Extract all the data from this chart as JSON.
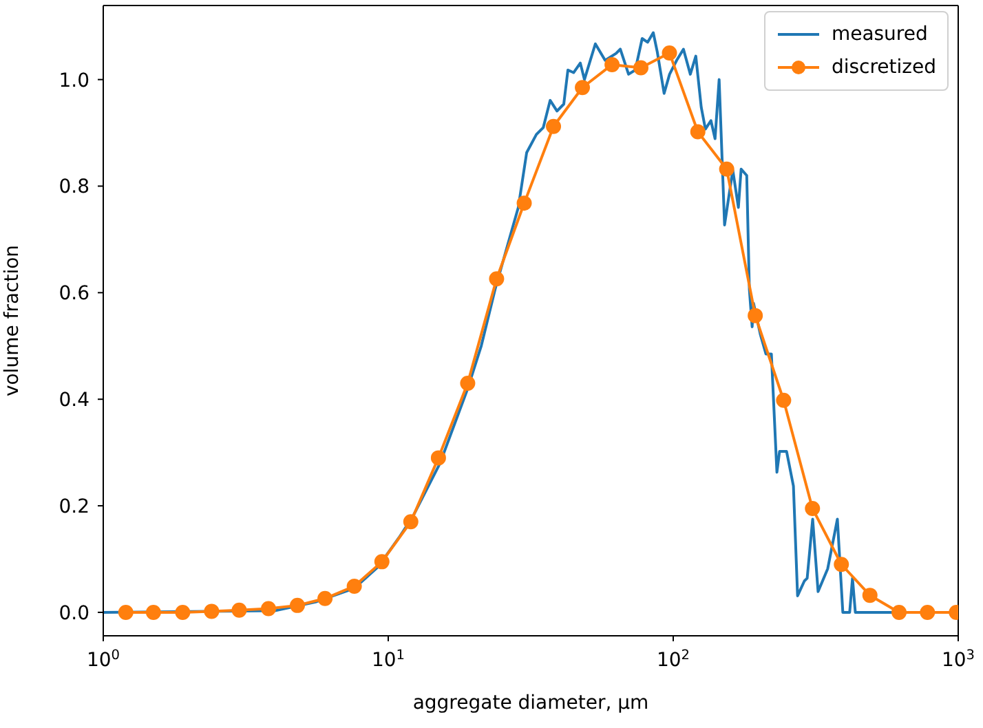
{
  "chart_data": {
    "type": "line",
    "xlabel": "aggregate diameter, µm",
    "ylabel": "volume fraction",
    "log": "x",
    "xlim": [
      1,
      1000
    ],
    "xticks": [
      {
        "value": 1,
        "label": "10$^{0}$"
      },
      {
        "value": 10,
        "label": "10$^{1}$"
      },
      {
        "value": 100,
        "label": "10$^{2}$"
      },
      {
        "value": 1000,
        "label": "10$^{3}$"
      }
    ],
    "ylim": [
      -0.044,
      1.139
    ],
    "yticks": [
      {
        "value": 0,
        "label": "0.0"
      },
      {
        "value": 0.2,
        "label": "0.2"
      },
      {
        "value": 0.4,
        "label": "0.4"
      },
      {
        "value": 0.6,
        "label": "0.6"
      },
      {
        "value": 0.8,
        "label": "0.8"
      },
      {
        "value": 1,
        "label": "1.0"
      }
    ],
    "legend": "top right",
    "series": [
      {
        "name": "measured",
        "color": "#1f77b4",
        "marker": "none",
        "x": [
          1,
          4.0,
          5.6,
          7.6,
          9.2,
          10.9,
          12.2,
          15.2,
          19.0,
          21.2,
          23.7,
          27.1,
          28.6,
          30.6,
          33.1,
          35.0,
          37.0,
          39.1,
          41.3,
          42.7,
          44.7,
          47.2,
          48.8,
          53.3,
          57.7,
          63.0,
          65.2,
          69.7,
          73.6,
          77.8,
          81.3,
          85.1,
          87.9,
          92.9,
          97.1,
          102.8,
          108.6,
          114.8,
          120.0,
          125.4,
          129.7,
          135.6,
          140.2,
          144.9,
          151.4,
          161.8,
          169.3,
          173.1,
          181.1,
          185.0,
          189.2,
          191.4,
          202.3,
          211.5,
          221.0,
          231.1,
          236.1,
          249.9,
          264.1,
          273.1,
          288.6,
          295.1,
          308.5,
          322.3,
          348.4,
          376.7,
          393.6,
          416.0,
          425.6,
          435.5,
          1000
        ],
        "values": [
          0,
          0.003,
          0.02,
          0.045,
          0.085,
          0.14,
          0.18,
          0.28,
          0.42,
          0.5,
          0.606,
          0.716,
          0.76,
          0.863,
          0.897,
          0.91,
          0.961,
          0.941,
          0.954,
          1.018,
          1.013,
          1.031,
          1.0,
          1.067,
          1.036,
          1.049,
          1.057,
          1.01,
          1.018,
          1.077,
          1.07,
          1.088,
          1.052,
          0.974,
          1.01,
          1.036,
          1.057,
          1.01,
          1.044,
          0.948,
          0.907,
          0.923,
          0.889,
          1.0,
          0.727,
          0.83,
          0.76,
          0.832,
          0.82,
          0.606,
          0.536,
          0.58,
          0.521,
          0.485,
          0.485,
          0.263,
          0.302,
          0.302,
          0.237,
          0.031,
          0.059,
          0.064,
          0.175,
          0.039,
          0.082,
          0.175,
          0,
          0,
          0.064,
          0,
          0
        ]
      },
      {
        "name": "discretized",
        "color": "#ff7f0e",
        "marker": "circle",
        "x": [
          1.2,
          1.5,
          1.9,
          2.4,
          3.0,
          3.8,
          4.8,
          6.0,
          7.6,
          9.5,
          12,
          15,
          19,
          24,
          30,
          38,
          48,
          61,
          77,
          97,
          122,
          154,
          194,
          244,
          308,
          389,
          490,
          620,
          780,
          985
        ],
        "values": [
          0,
          0,
          0,
          0.002,
          0.004,
          0.007,
          0.013,
          0.026,
          0.049,
          0.095,
          0.17,
          0.29,
          0.43,
          0.626,
          0.768,
          0.912,
          0.985,
          1.028,
          1.022,
          1.05,
          0.902,
          0.832,
          0.557,
          0.398,
          0.195,
          0.09,
          0.032,
          0,
          0,
          0
        ]
      }
    ]
  }
}
